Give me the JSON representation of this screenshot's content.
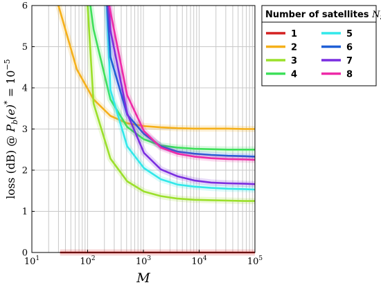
{
  "chart_data": {
    "type": "line",
    "title": "",
    "xlabel": "M",
    "ylabel": "loss (dB) @ P_b(e)* = 10^-5",
    "xscale": "log",
    "xlim": [
      10,
      100000
    ],
    "ylim": [
      0,
      6
    ],
    "grid": true,
    "legend_position": "right",
    "legend_title_main": "Number of satellites",
    "legend_title_symbol": "N",
    "legend_title_sub": "S",
    "x_tick_labels": [
      {
        "base": "10",
        "exp": "1"
      },
      {
        "base": "10",
        "exp": "2"
      },
      {
        "base": "10",
        "exp": "3"
      },
      {
        "base": "10",
        "exp": "4"
      },
      {
        "base": "10",
        "exp": "5"
      }
    ],
    "y_tick_labels": [
      "0",
      "1",
      "2",
      "3",
      "4",
      "5",
      "6"
    ],
    "ylabel_parts": {
      "prefix": "loss (dB) @ ",
      "P": "P",
      "P_sub": "b",
      "arg": "(e)",
      "star": "*",
      "eq": " = 10",
      "exp": "−5"
    },
    "series": [
      {
        "name": "1",
        "color": "#d42020",
        "x": [
          32,
          64,
          128,
          256,
          512,
          1024,
          2048,
          4096,
          8192,
          16384,
          32768,
          65536,
          100000
        ],
        "y": [
          0,
          0,
          0,
          0,
          0,
          0,
          0,
          0,
          0,
          0,
          0,
          0,
          0
        ]
      },
      {
        "name": "2",
        "color": "#f5b01a",
        "x": [
          30,
          64,
          128,
          256,
          512,
          1024,
          2048,
          4096,
          8192,
          16384,
          32768,
          65536,
          100000
        ],
        "y": [
          6.0,
          4.45,
          3.72,
          3.32,
          3.14,
          3.07,
          3.04,
          3.02,
          3.01,
          3.01,
          3.01,
          3.0,
          3.0
        ]
      },
      {
        "name": "3",
        "color": "#9be02a",
        "x": [
          100,
          128,
          256,
          512,
          1024,
          2048,
          4096,
          8192,
          16384,
          32768,
          65536,
          100000
        ],
        "y": [
          6.0,
          3.62,
          2.28,
          1.73,
          1.48,
          1.37,
          1.31,
          1.28,
          1.27,
          1.26,
          1.25,
          1.25
        ]
      },
      {
        "name": "4",
        "color": "#3ee05a",
        "x": [
          112,
          128,
          256,
          512,
          1024,
          2048,
          4096,
          8192,
          16384,
          32768,
          65536,
          100000
        ],
        "y": [
          6.0,
          5.42,
          3.72,
          3.05,
          2.75,
          2.6,
          2.55,
          2.52,
          2.51,
          2.5,
          2.5,
          2.5
        ]
      },
      {
        "name": "5",
        "color": "#32e8ea",
        "x": [
          220,
          256,
          512,
          1024,
          2048,
          4096,
          8192,
          16384,
          32768,
          65536,
          100000
        ],
        "y": [
          6.0,
          3.95,
          2.58,
          2.05,
          1.78,
          1.65,
          1.6,
          1.57,
          1.55,
          1.54,
          1.53
        ]
      },
      {
        "name": "6",
        "color": "#1f5fd6",
        "x": [
          225,
          256,
          512,
          1024,
          2048,
          4096,
          8192,
          16384,
          32768,
          65536,
          100000
        ],
        "y": [
          6.0,
          4.75,
          3.35,
          2.88,
          2.58,
          2.45,
          2.4,
          2.37,
          2.35,
          2.34,
          2.33
        ]
      },
      {
        "name": "7",
        "color": "#7a2ee0",
        "x": [
          240,
          256,
          512,
          1024,
          2048,
          4096,
          8192,
          16384,
          32768,
          65536,
          100000
        ],
        "y": [
          6.0,
          5.4,
          3.38,
          2.42,
          2.02,
          1.85,
          1.75,
          1.7,
          1.68,
          1.67,
          1.66
        ]
      },
      {
        "name": "8",
        "color": "#ee2aa8",
        "x": [
          245,
          256,
          512,
          1024,
          2048,
          4096,
          8192,
          16384,
          32768,
          65536,
          100000
        ],
        "y": [
          6.0,
          5.85,
          3.82,
          2.95,
          2.55,
          2.4,
          2.33,
          2.29,
          2.27,
          2.26,
          2.25
        ]
      }
    ]
  }
}
